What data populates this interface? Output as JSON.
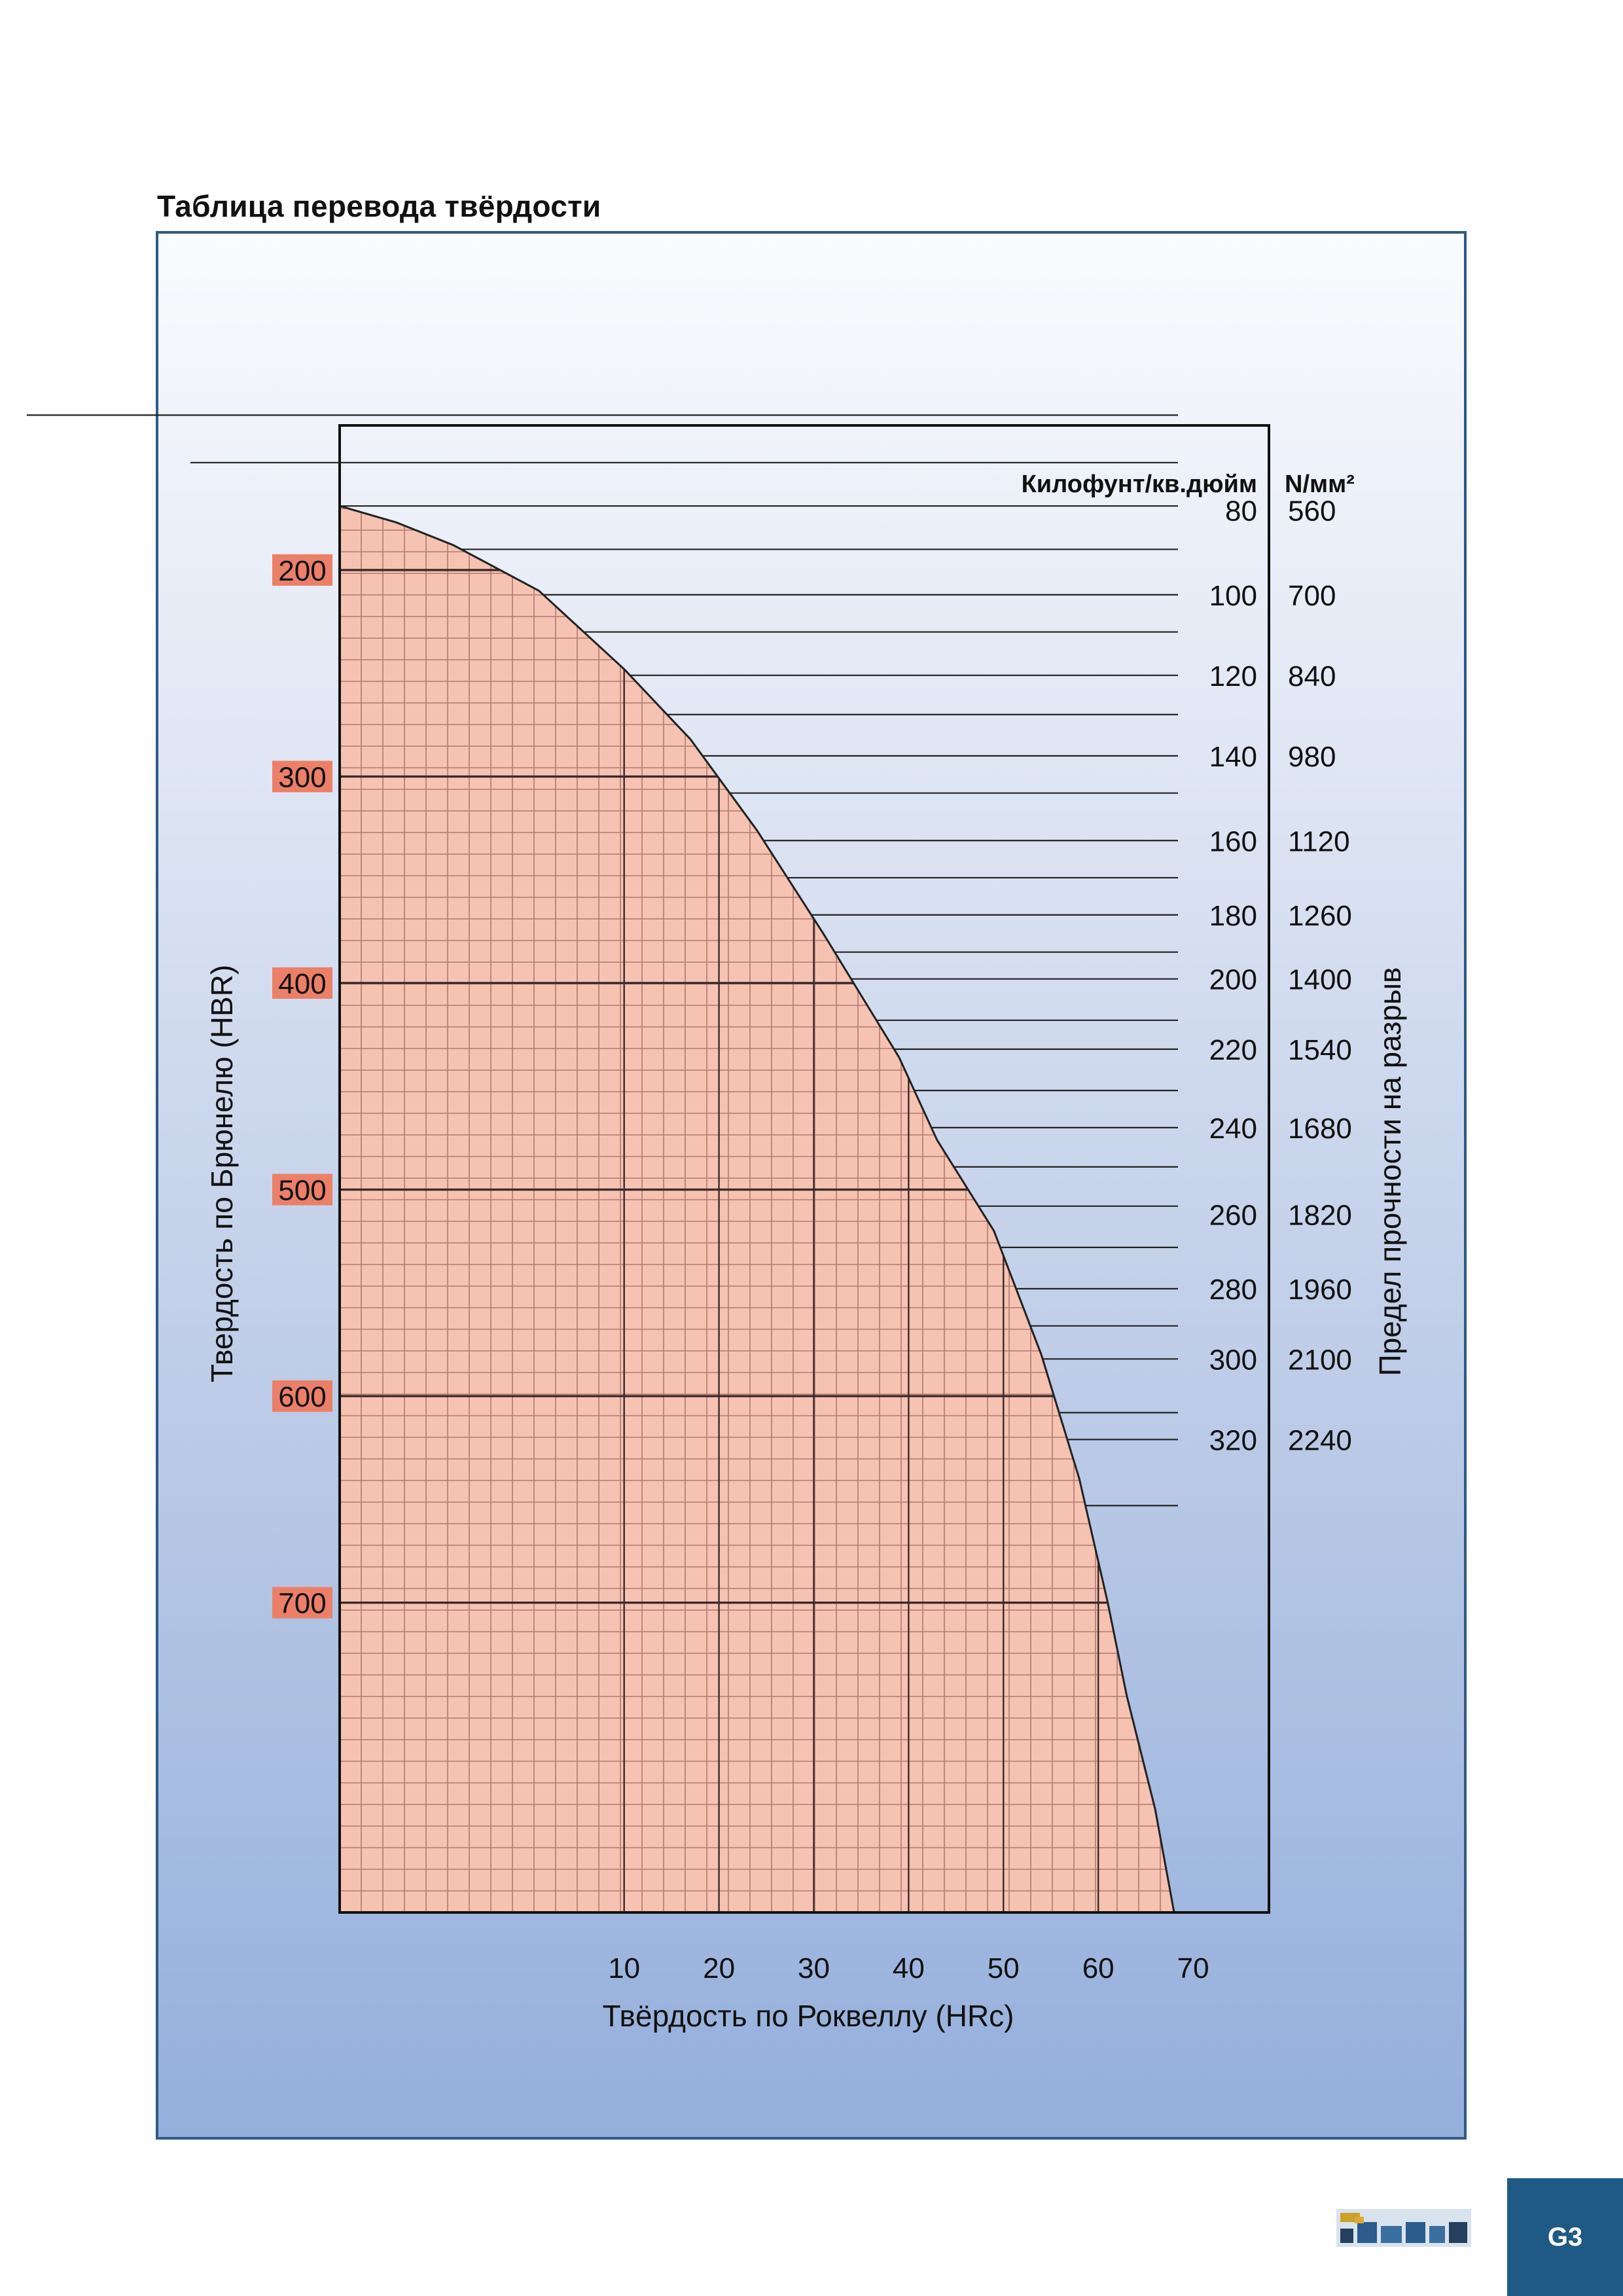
{
  "page": {
    "title": "Таблица перевода твёрдости",
    "page_label": "G3"
  },
  "chart_data": {
    "type": "area",
    "title": "Таблица перевода твёрдости",
    "xlabel": "Твёрдость по Роквеллу (HRc)",
    "ylabel": "Твердость по Брюнелю (HBR)",
    "right_label": "Предел прочности на разрыв",
    "unit_labels": [
      "Килофунт/кв.дюйм",
      "N/мм²"
    ],
    "xlim": [
      -20,
      78
    ],
    "ylim": [
      850,
      130
    ],
    "x_ticks": [
      10,
      20,
      30,
      40,
      50,
      60,
      70
    ],
    "y_ticks": [
      200,
      300,
      400,
      500,
      600,
      700
    ],
    "boundary_curve": {
      "x": [
        -20,
        -14,
        -8,
        1,
        10,
        17,
        24,
        31,
        39,
        43,
        49,
        54,
        58,
        61,
        63,
        66,
        68
      ],
      "y": [
        169,
        177,
        188,
        210,
        248,
        282,
        326,
        376,
        436,
        476,
        520,
        580,
        640,
        700,
        745,
        800,
        850
      ]
    },
    "fill_color": "#f6c2b2",
    "grid_color": "#b07a70",
    "tensile_scale": [
      {
        "ksi": "80",
        "n_mm2": "560",
        "hbr": 171
      },
      {
        "ksi": "100",
        "n_mm2": "700",
        "hbr": 212
      },
      {
        "ksi": "120",
        "n_mm2": "840",
        "hbr": 251
      },
      {
        "ksi": "140",
        "n_mm2": "980",
        "hbr": 290
      },
      {
        "ksi": "160",
        "n_mm2": "1120",
        "hbr": 331
      },
      {
        "ksi": "180",
        "n_mm2": "1260",
        "hbr": 367
      },
      {
        "ksi": "200",
        "n_mm2": "1400",
        "hbr": 398
      },
      {
        "ksi": "220",
        "n_mm2": "1540",
        "hbr": 432
      },
      {
        "ksi": "240",
        "n_mm2": "1680",
        "hbr": 470
      },
      {
        "ksi": "260",
        "n_mm2": "1820",
        "hbr": 512
      },
      {
        "ksi": "280",
        "n_mm2": "1960",
        "hbr": 548
      },
      {
        "ksi": "300",
        "n_mm2": "2100",
        "hbr": 582
      },
      {
        "ksi": "320",
        "n_mm2": "2240",
        "hbr": 621
      }
    ],
    "tensile_ticks_hbr": [
      125,
      148,
      169,
      190,
      212,
      230,
      251,
      270,
      290,
      308,
      331,
      349,
      367,
      385,
      398,
      418,
      432,
      452,
      470,
      489,
      508,
      528,
      548,
      566,
      582,
      608,
      621,
      653
    ]
  }
}
